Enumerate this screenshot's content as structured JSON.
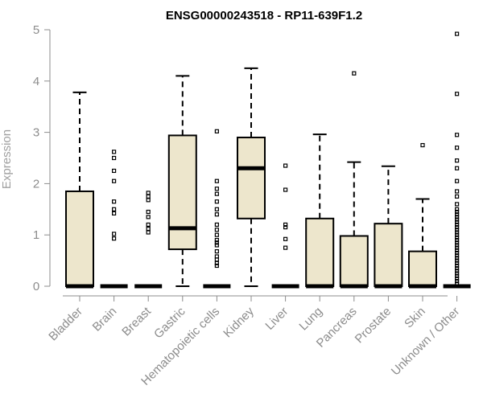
{
  "chart_data": {
    "type": "boxplot",
    "title": "ENSG00000243518 - RP11-639F1.2",
    "xlabel": "",
    "ylabel": "Expression",
    "ylim": [
      0,
      5
    ],
    "yticks": [
      0,
      1,
      2,
      3,
      4,
      5
    ],
    "box_color": "#ede6cc",
    "categories": [
      "Bladder",
      "Brain",
      "Breast",
      "Gastric",
      "Hematopoietic cells",
      "Kidney",
      "Liver",
      "Lung",
      "Pancreas",
      "Prostate",
      "Skin",
      "Unknown / Other"
    ],
    "boxes": [
      {
        "min": 0,
        "q1": 0,
        "median": 0,
        "q3": 1.85,
        "max": 3.78,
        "outliers": []
      },
      {
        "min": 0,
        "q1": 0,
        "median": 0,
        "q3": 0,
        "max": 0,
        "outliers": [
          0.93,
          1.02,
          1.42,
          1.5,
          1.65,
          2.05,
          2.25,
          2.5,
          2.62
        ]
      },
      {
        "min": 0,
        "q1": 0,
        "median": 0,
        "q3": 0,
        "max": 0,
        "outliers": [
          1.05,
          1.12,
          1.2,
          1.35,
          1.45,
          1.68,
          1.75,
          1.82
        ]
      },
      {
        "min": 0,
        "q1": 0.72,
        "median": 1.13,
        "q3": 2.94,
        "max": 4.1,
        "outliers": []
      },
      {
        "min": 0,
        "q1": 0,
        "median": 0,
        "q3": 0,
        "max": 0,
        "outliers": [
          0.4,
          0.45,
          0.52,
          0.58,
          0.68,
          0.8,
          0.85,
          0.9,
          1.0,
          1.1,
          1.2,
          1.4,
          1.5,
          1.65,
          1.8,
          1.9,
          2.05,
          3.02
        ]
      },
      {
        "min": 0,
        "q1": 1.32,
        "median": 2.3,
        "q3": 2.9,
        "max": 4.25,
        "outliers": []
      },
      {
        "min": 0,
        "q1": 0,
        "median": 0,
        "q3": 0,
        "max": 0,
        "outliers": [
          0.75,
          0.92,
          1.15,
          1.2,
          1.88,
          2.35
        ]
      },
      {
        "min": 0,
        "q1": 0,
        "median": 0,
        "q3": 1.32,
        "max": 2.96,
        "outliers": []
      },
      {
        "min": 0,
        "q1": 0,
        "median": 0,
        "q3": 0.98,
        "max": 2.42,
        "outliers": [
          4.15
        ]
      },
      {
        "min": 0,
        "q1": 0,
        "median": 0,
        "q3": 1.22,
        "max": 2.34,
        "outliers": []
      },
      {
        "min": 0,
        "q1": 0,
        "median": 0,
        "q3": 0.68,
        "max": 1.7,
        "outliers": [
          2.75
        ]
      },
      {
        "min": 0,
        "q1": 0,
        "median": 0,
        "q3": 0,
        "max": 0,
        "outliers": [
          0.05,
          0.1,
          0.15,
          0.2,
          0.25,
          0.3,
          0.35,
          0.4,
          0.45,
          0.5,
          0.55,
          0.6,
          0.65,
          0.7,
          0.75,
          0.8,
          0.85,
          0.9,
          0.95,
          1.0,
          1.05,
          1.1,
          1.15,
          1.2,
          1.25,
          1.3,
          1.35,
          1.4,
          1.45,
          1.5,
          1.6,
          1.75,
          1.85,
          2.05,
          2.3,
          2.45,
          2.7,
          2.95,
          3.75,
          4.92
        ]
      }
    ]
  }
}
